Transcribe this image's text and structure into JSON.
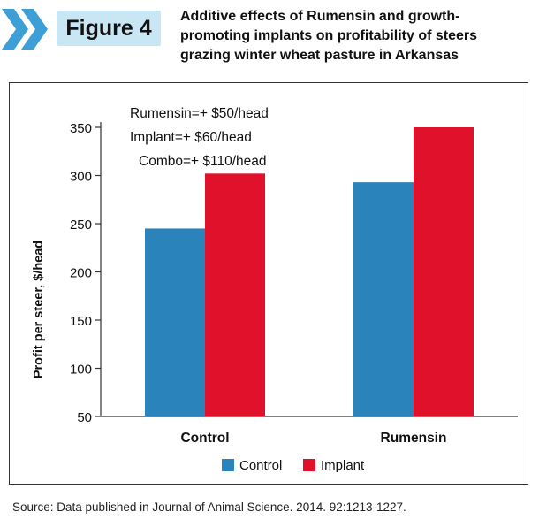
{
  "figure": {
    "label": "Figure 4",
    "title_lines": [
      "Additive effects of Rumensin and growth-",
      "promoting implants on profitability of steers",
      "grazing winter wheat pasture in Arkansas"
    ]
  },
  "colors": {
    "control": "#2b83bc",
    "implant": "#e0112b",
    "label_box": "#c9e6f4",
    "chevron": "#3d9fd6"
  },
  "chart_data": {
    "type": "bar",
    "categories": [
      "Control",
      "Rumensin"
    ],
    "series": [
      {
        "name": "Control",
        "values": [
          245,
          293
        ]
      },
      {
        "name": "Implant",
        "values": [
          302,
          350
        ]
      }
    ],
    "ylabel": "Profit per steer, $/head",
    "xlabel": "",
    "ylim": [
      50,
      350
    ],
    "yticks": [
      50,
      100,
      150,
      200,
      250,
      300,
      350
    ],
    "grid": false,
    "legend_position": "bottom",
    "annotations": [
      "Rumensin=+ $50/head",
      "Implant=+ $60/head",
      "Combo=+ $110/head"
    ]
  },
  "source": "Source: Data published in Journal of Animal Science. 2014. 92:1213-1227."
}
